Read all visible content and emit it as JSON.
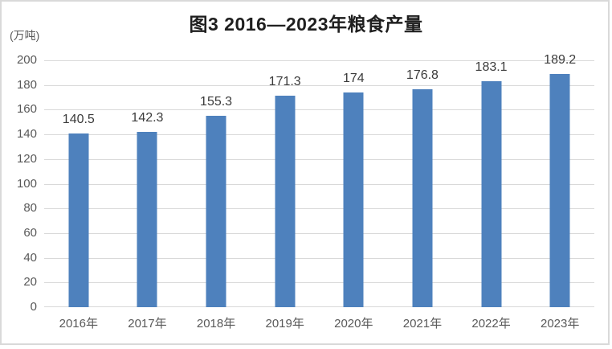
{
  "chart_data": {
    "type": "bar",
    "title": "图3 2016—2023年粮食产量",
    "unit_label": "(万吨)",
    "categories": [
      "2016年",
      "2017年",
      "2018年",
      "2019年",
      "2020年",
      "2021年",
      "2022年",
      "2023年"
    ],
    "values": [
      140.5,
      142.3,
      155.3,
      171.3,
      174,
      176.8,
      183.1,
      189.2
    ],
    "value_labels": [
      "140.5",
      "142.3",
      "155.3",
      "171.3",
      "174",
      "176.8",
      "183.1",
      "189.2"
    ],
    "xlabel": "",
    "ylabel": "",
    "ylim": [
      0,
      200
    ],
    "yticks": [
      0,
      20,
      40,
      60,
      80,
      100,
      120,
      140,
      160,
      180,
      200
    ],
    "grid": true,
    "legend": "none",
    "colors": {
      "bar": "#4E81BD",
      "gridline": "#D9D9D9",
      "tick_label": "#595959",
      "category_label": "#595959",
      "data_label": "#3B3B3B",
      "title": "#1F1F1F",
      "frame_border": "#D9D9D9"
    }
  }
}
